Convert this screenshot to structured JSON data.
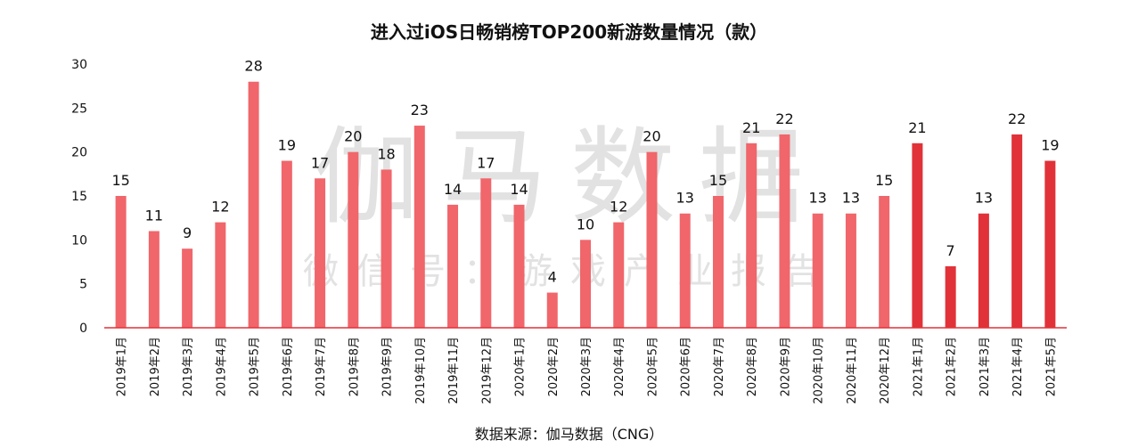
{
  "colors": {
    "bar_light": "#F0666B",
    "bar_dark": "#E03238",
    "axis": "#E03238",
    "text": "#111111",
    "watermark": "#E2E2E2"
  },
  "watermark": {
    "main": "伽马数据",
    "sub": "微信号：游戏产业报告"
  },
  "source": "数据来源：伽马数据（CNG）",
  "chart_data": {
    "type": "bar",
    "title": "进入过iOS日畅销榜TOP200新游数量情况（款）",
    "xlabel": "",
    "ylabel": "",
    "ylim": [
      0,
      30
    ],
    "yticks": [
      0,
      5,
      10,
      15,
      20,
      25,
      30
    ],
    "grid": false,
    "legend": "none",
    "categories": [
      "2019年1月",
      "2019年2月",
      "2019年3月",
      "2019年4月",
      "2019年5月",
      "2019年6月",
      "2019年7月",
      "2019年8月",
      "2019年9月",
      "2019年10月",
      "2019年11月",
      "2019年12月",
      "2020年1月",
      "2020年2月",
      "2020年3月",
      "2020年4月",
      "2020年5月",
      "2020年6月",
      "2020年7月",
      "2020年8月",
      "2020年9月",
      "2020年10月",
      "2020年11月",
      "2020年12月",
      "2021年1月",
      "2021年2月",
      "2021年3月",
      "2021年4月",
      "2021年5月"
    ],
    "values": [
      15,
      11,
      9,
      12,
      28,
      19,
      17,
      20,
      18,
      23,
      14,
      17,
      14,
      4,
      10,
      12,
      20,
      13,
      15,
      21,
      22,
      13,
      13,
      15,
      21,
      7,
      13,
      22,
      19
    ],
    "highlight_from_category": "2021年1月"
  }
}
